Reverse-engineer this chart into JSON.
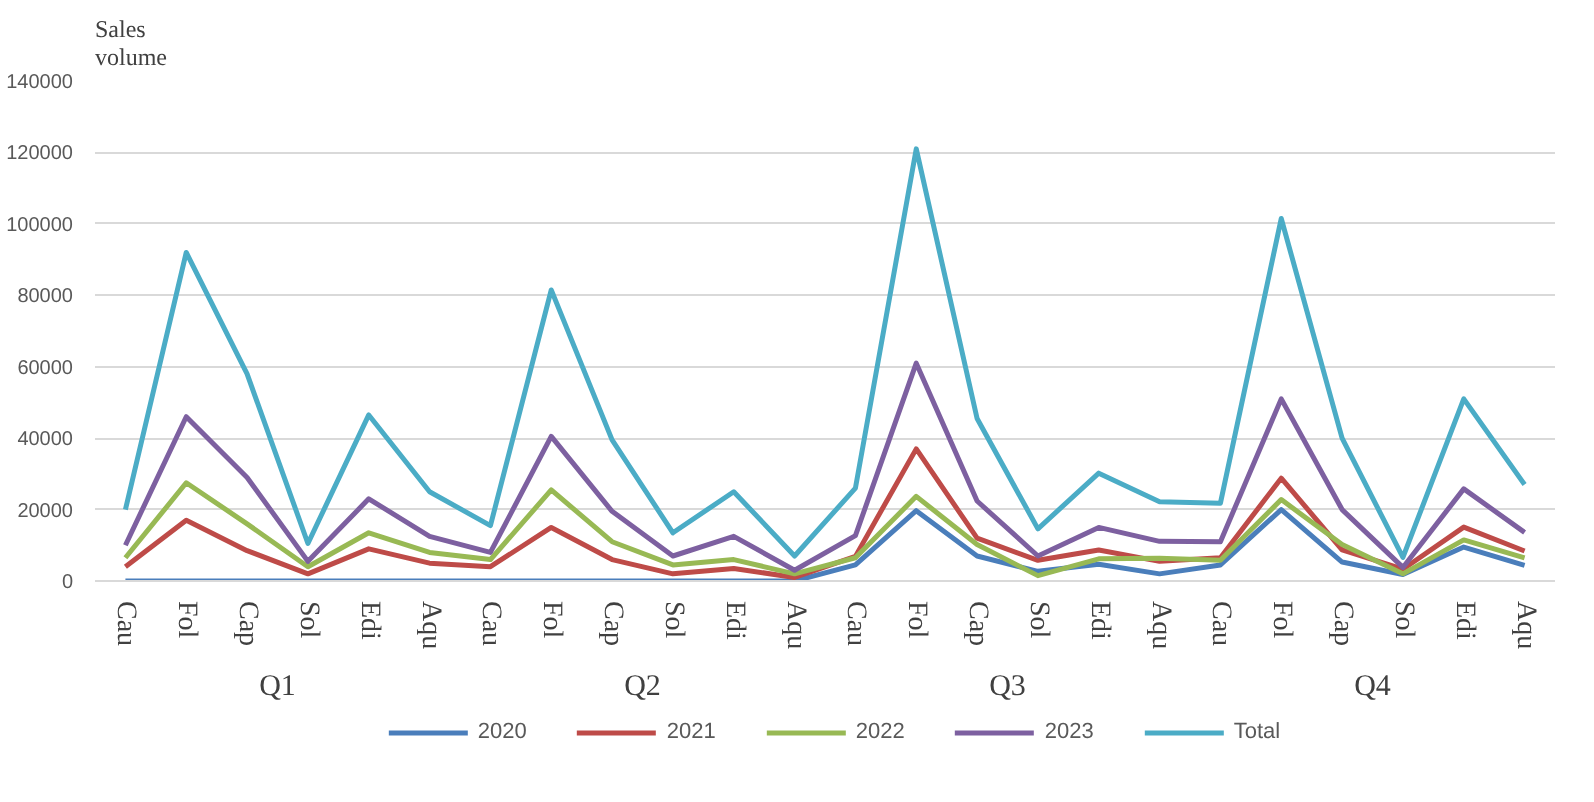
{
  "chart_data": {
    "type": "line",
    "ylabel": "Sales volume",
    "categories": [
      "Cau",
      "Fol",
      "Cap",
      "Sol",
      "Edi",
      "Aqu",
      "Cau",
      "Fol",
      "Cap",
      "Sol",
      "Edi",
      "Aqu",
      "Cau",
      "Fol",
      "Cap",
      "Sol",
      "Edi",
      "Aqu",
      "Cau",
      "Fol",
      "Cap",
      "Sol",
      "Edi",
      "Aqu"
    ],
    "annotations": [
      "Q1",
      "Q2",
      "Q3",
      "Q4"
    ],
    "series": [
      {
        "name": "2020",
        "color": "#4a7ebb",
        "values": [
          0,
          0,
          0,
          0,
          0,
          0,
          0,
          0,
          0,
          0,
          0,
          0,
          4500,
          19700,
          7000,
          2700,
          4700,
          2000,
          4500,
          20000,
          5300,
          1800,
          9500,
          4400
        ]
      },
      {
        "name": "2021",
        "color": "#be4b48",
        "values": [
          4000,
          17000,
          8500,
          2000,
          9000,
          5000,
          4000,
          15000,
          6000,
          2000,
          3500,
          1000,
          6900,
          37000,
          12000,
          5800,
          8700,
          5500,
          6500,
          28800,
          8700,
          3300,
          15100,
          8400
        ]
      },
      {
        "name": "2022",
        "color": "#98b954",
        "values": [
          6500,
          27500,
          16000,
          4000,
          13500,
          8000,
          6000,
          25500,
          11000,
          4500,
          6000,
          2000,
          6500,
          23700,
          10200,
          1500,
          6200,
          6400,
          5800,
          22800,
          10200,
          2000,
          11500,
          6500
        ]
      },
      {
        "name": "2023",
        "color": "#7d60a0",
        "values": [
          10000,
          46000,
          29000,
          5500,
          23000,
          12500,
          8000,
          40500,
          19500,
          7000,
          12500,
          3000,
          12700,
          61000,
          22400,
          7000,
          15000,
          11100,
          11000,
          51000,
          20000,
          3800,
          25800,
          13600
        ]
      },
      {
        "name": "Total",
        "color": "#4bacc6",
        "values": [
          20000,
          92000,
          58000,
          10500,
          46500,
          25000,
          15500,
          81500,
          39500,
          13500,
          25000,
          7000,
          26000,
          121000,
          45500,
          14600,
          30200,
          22200,
          21800,
          101500,
          40000,
          6600,
          51000,
          27000
        ]
      }
    ],
    "ylim": [
      0,
      140000
    ],
    "yticks": [
      0,
      20000,
      40000,
      60000,
      80000,
      100000,
      120000,
      140000
    ],
    "grid": "y",
    "legend": "bottom",
    "line_style": "solid",
    "marker": "none"
  }
}
